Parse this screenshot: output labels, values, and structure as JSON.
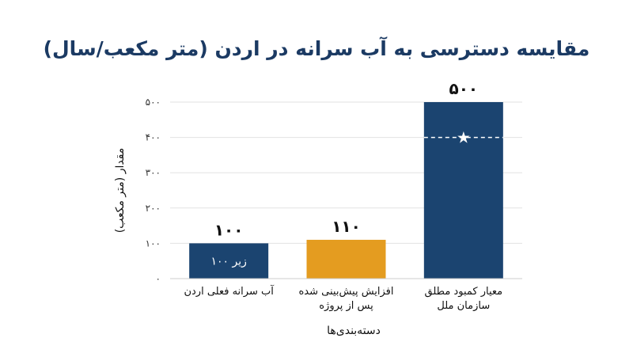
{
  "chart_data": {
    "type": "bar",
    "title": "مقایسه دسترسی به آب سرانه در اردن (متر مکعب/سال)",
    "xlabel": "دسته‌بندی‌ها",
    "ylabel": "مقدار (متر مکعب)",
    "ylim": [
      0,
      500
    ],
    "yticks": [
      "۰",
      "۱۰۰",
      "۲۰۰",
      "۳۰۰",
      "۴۰۰",
      "۵۰۰"
    ],
    "yticks_values": [
      0,
      100,
      200,
      300,
      400,
      500
    ],
    "grid": true,
    "categories": [
      [
        "آب سرانه فعلی اردن"
      ],
      [
        "افزایش پیش‌بینی شده",
        "پس از پروژه"
      ],
      [
        "معیار کمبود مطلق",
        "سازمان ملل"
      ]
    ],
    "values": [
      100,
      110,
      500
    ],
    "value_labels": [
      "۱۰۰",
      "۱۱۰",
      "۵۰۰"
    ],
    "bar_colors": [
      "#1b4470",
      "#e49c20",
      "#1b4470"
    ],
    "inner_labels": [
      "زیر ۱۰۰",
      "",
      ""
    ],
    "reference_marker": {
      "category_index": 2,
      "value": 400,
      "symbol": "★",
      "line_color": "#ffffff"
    }
  }
}
